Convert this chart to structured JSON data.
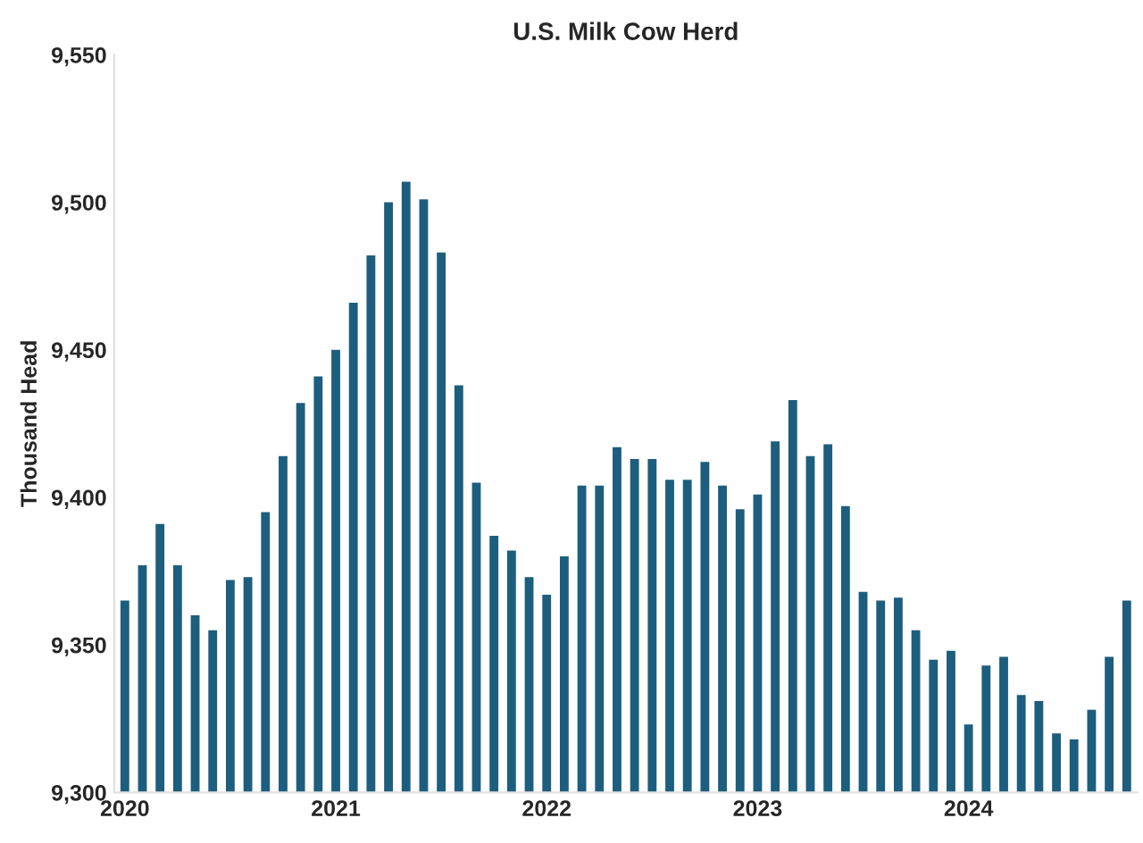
{
  "chart_data": {
    "type": "bar",
    "title": "U.S. Milk Cow Herd",
    "ylabel": "Thousand Head",
    "categories": [
      "2020",
      null,
      null,
      null,
      null,
      null,
      null,
      null,
      null,
      null,
      null,
      null,
      "2021",
      null,
      null,
      null,
      null,
      null,
      null,
      null,
      null,
      null,
      null,
      null,
      "2022",
      null,
      null,
      null,
      null,
      null,
      null,
      null,
      null,
      null,
      null,
      null,
      "2023",
      null,
      null,
      null,
      null,
      null,
      null,
      null,
      null,
      null,
      null,
      null,
      "2024",
      null,
      null,
      null,
      null,
      null,
      null,
      null,
      null,
      null
    ],
    "values": [
      9365,
      9377,
      9391,
      9377,
      9360,
      9355,
      9372,
      9373,
      9395,
      9414,
      9432,
      9441,
      9450,
      9466,
      9482,
      9500,
      9507,
      9501,
      9483,
      9438,
      9405,
      9387,
      9382,
      9373,
      9367,
      9380,
      9404,
      9404,
      9417,
      9413,
      9413,
      9406,
      9406,
      9412,
      9404,
      9396,
      9401,
      9419,
      9433,
      9414,
      9418,
      9397,
      9368,
      9365,
      9366,
      9355,
      9345,
      9348,
      9323,
      9343,
      9346,
      9333,
      9331,
      9320,
      9318,
      9328,
      9346,
      9365
    ],
    "color": "#1d5e7e",
    "ylim": [
      9300,
      9550
    ],
    "yticks": [
      {
        "value": 9300,
        "label": "9,300"
      },
      {
        "value": 9350,
        "label": "9,350"
      },
      {
        "value": 9400,
        "label": "9,400"
      },
      {
        "value": 9450,
        "label": "9,450"
      },
      {
        "value": 9500,
        "label": "9,500"
      },
      {
        "value": 9550,
        "label": "9,550"
      }
    ],
    "grid": false,
    "legend": false
  }
}
